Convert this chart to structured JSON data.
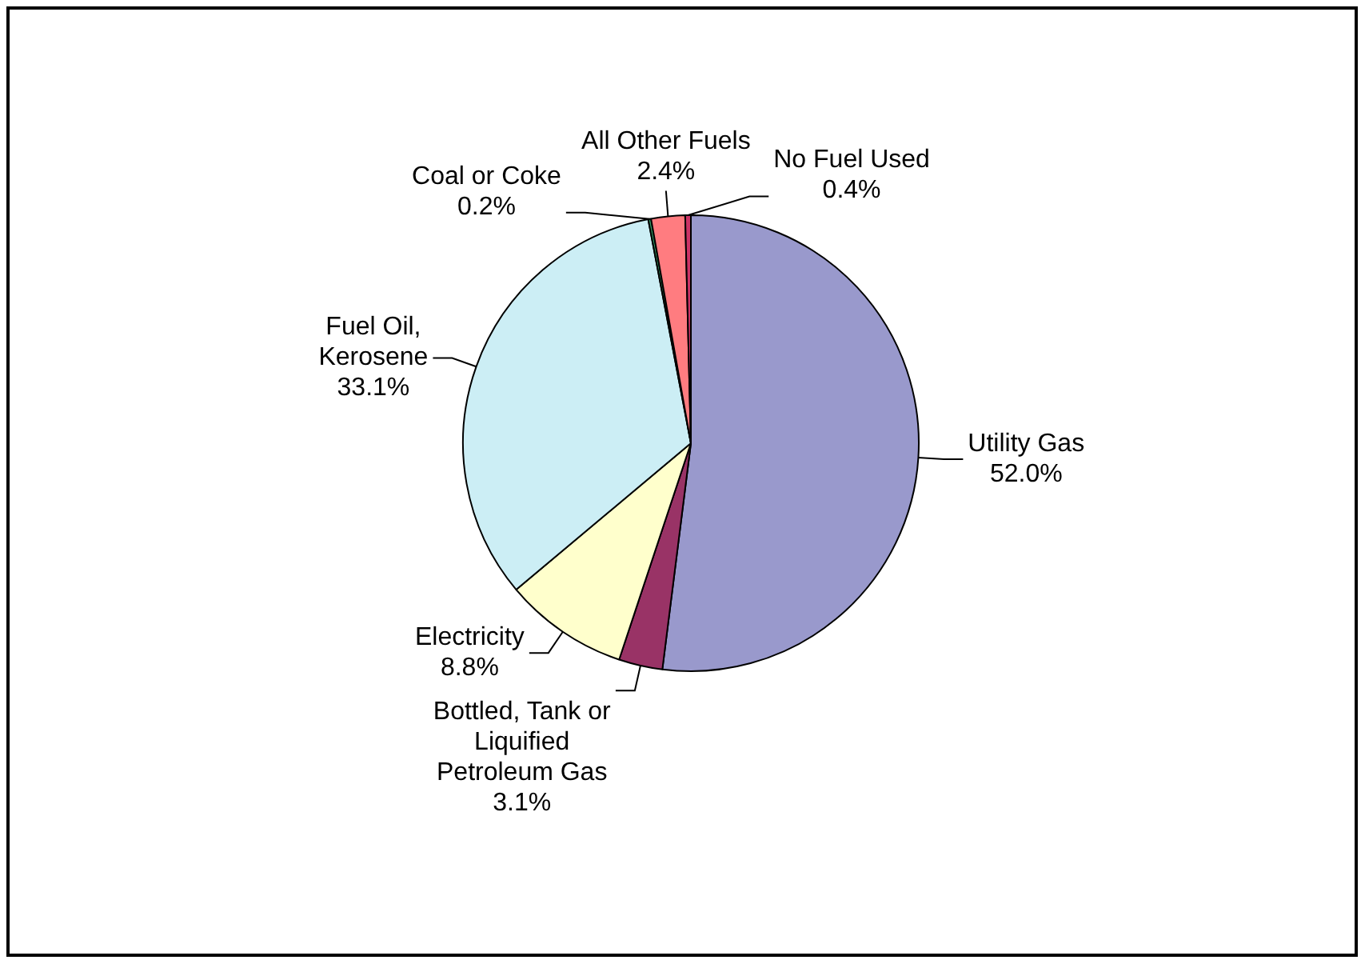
{
  "chart_data": {
    "type": "pie",
    "categories": [
      "Utility Gas",
      "Bottled, Tank or Liquified Petroleum Gas",
      "Electricity",
      "Fuel Oil, Kerosene",
      "Coal or Coke",
      "All Other Fuels",
      "No Fuel Used"
    ],
    "values": [
      52.0,
      3.1,
      8.8,
      33.1,
      0.2,
      2.4,
      0.4
    ],
    "value_labels": [
      "52.0%",
      "3.1%",
      "8.8%",
      "33.1%",
      "0.2%",
      "2.4%",
      "0.4%"
    ],
    "colors": [
      "#9999cc",
      "#993366",
      "#ffffcc",
      "#cceef5",
      "#339966",
      "#ff7c80",
      "#cc3366"
    ],
    "legend": false
  }
}
